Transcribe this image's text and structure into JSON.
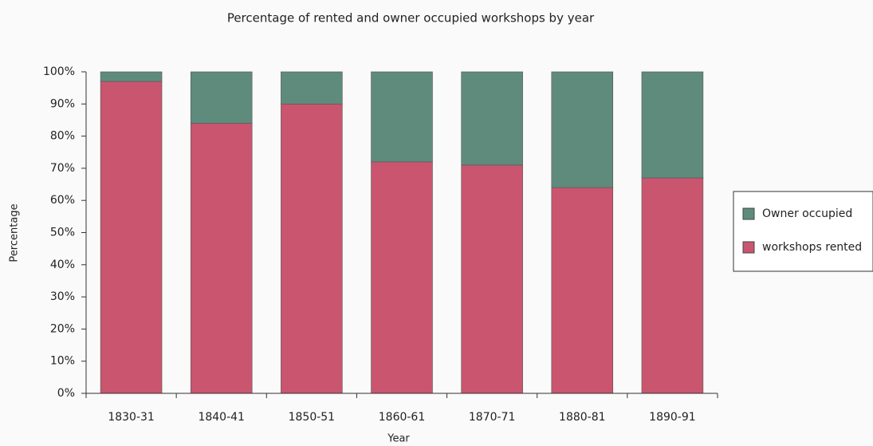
{
  "chart_data": {
    "type": "stacked_bar",
    "title": "Percentage of rented and owner occupied workshops by year",
    "x_label": "Year",
    "y_label": "Percentage",
    "categories": [
      "1830-31",
      "1840-41",
      "1850-51",
      "1860-61",
      "1870-71",
      "1880-81",
      "1890-91"
    ],
    "series": [
      {
        "name": "workshops rented",
        "color": "#c9566e",
        "values": [
          97,
          84,
          90,
          72,
          71,
          64,
          67
        ]
      },
      {
        "name": "Owner occupied",
        "color": "#5f8b7d",
        "values": [
          3,
          16,
          10,
          28,
          29,
          36,
          33
        ]
      }
    ],
    "ylim": [
      0,
      100
    ],
    "yticks": [
      {
        "value": 0,
        "label": "0%"
      },
      {
        "value": 10,
        "label": "10%"
      },
      {
        "value": 20,
        "label": "20%"
      },
      {
        "value": 30,
        "label": "30%"
      },
      {
        "value": 40,
        "label": "40%"
      },
      {
        "value": 50,
        "label": "50%"
      },
      {
        "value": 60,
        "label": "60%"
      },
      {
        "value": 70,
        "label": "70%"
      },
      {
        "value": 80,
        "label": "80%"
      },
      {
        "value": 90,
        "label": "90%"
      },
      {
        "value": 100,
        "label": "100%"
      }
    ],
    "legend": "right"
  }
}
